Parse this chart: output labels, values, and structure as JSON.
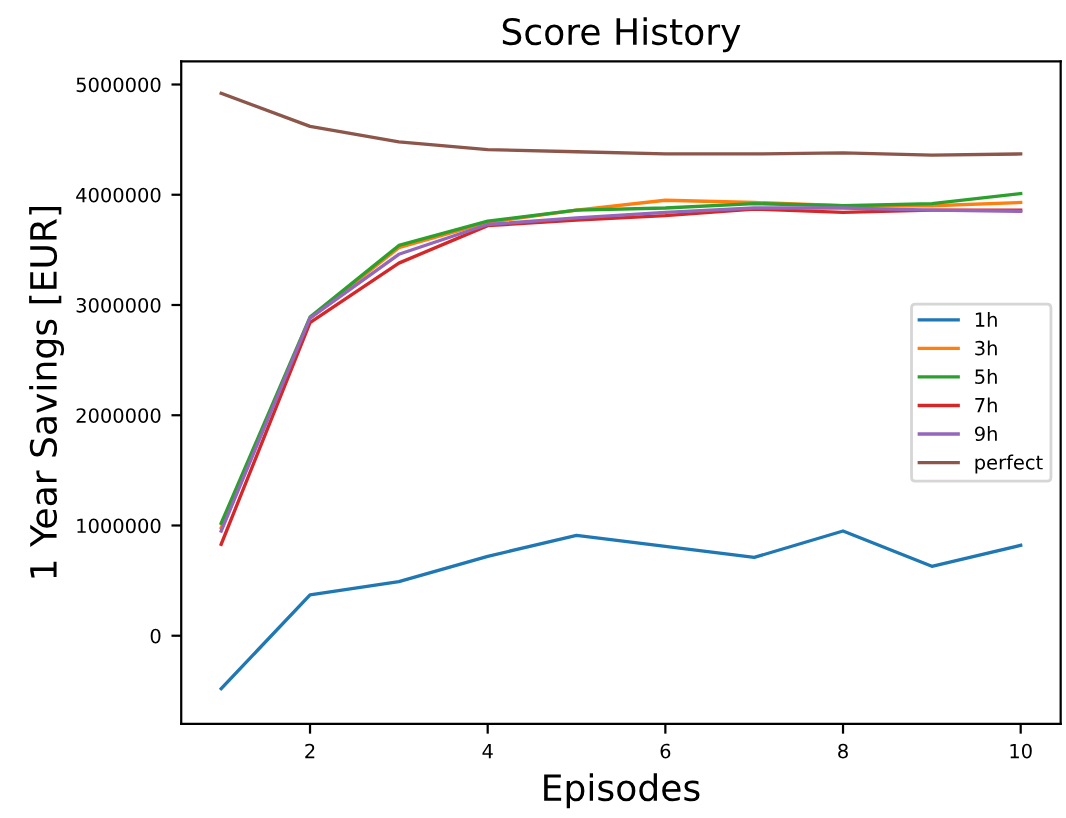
{
  "chart_data": {
    "type": "line",
    "title": "Score History",
    "xlabel": "Episodes",
    "ylabel": "1 Year Savings [EUR]",
    "x": [
      1,
      2,
      3,
      4,
      5,
      6,
      7,
      8,
      9,
      10
    ],
    "series": [
      {
        "name": "1h",
        "color": "#1f77b4",
        "values": [
          -480000,
          370000,
          490000,
          720000,
          910000,
          810000,
          710000,
          950000,
          630000,
          820000
        ]
      },
      {
        "name": "3h",
        "color": "#ff7f0e",
        "values": [
          980000,
          2880000,
          3520000,
          3750000,
          3860000,
          3950000,
          3930000,
          3900000,
          3900000,
          3930000
        ]
      },
      {
        "name": "5h",
        "color": "#2ca02c",
        "values": [
          1020000,
          2890000,
          3540000,
          3760000,
          3860000,
          3880000,
          3920000,
          3900000,
          3920000,
          4010000
        ]
      },
      {
        "name": "7h",
        "color": "#d62728",
        "values": [
          830000,
          2840000,
          3380000,
          3720000,
          3770000,
          3810000,
          3870000,
          3840000,
          3860000,
          3860000
        ]
      },
      {
        "name": "9h",
        "color": "#9467bd",
        "values": [
          950000,
          2880000,
          3460000,
          3730000,
          3790000,
          3840000,
          3880000,
          3880000,
          3860000,
          3850000
        ]
      },
      {
        "name": "perfect",
        "color": "#8c564b",
        "values": [
          4920000,
          4620000,
          4480000,
          4410000,
          4390000,
          4370000,
          4370000,
          4380000,
          4360000,
          4370000
        ]
      }
    ],
    "xlim": [
      0.55,
      10.45
    ],
    "ylim": [
      -800000,
      5210000
    ],
    "xticks": [
      2,
      4,
      6,
      8,
      10
    ],
    "yticks": [
      0,
      1000000,
      2000000,
      3000000,
      4000000,
      5000000
    ],
    "legend": "center right",
    "grid": false
  }
}
